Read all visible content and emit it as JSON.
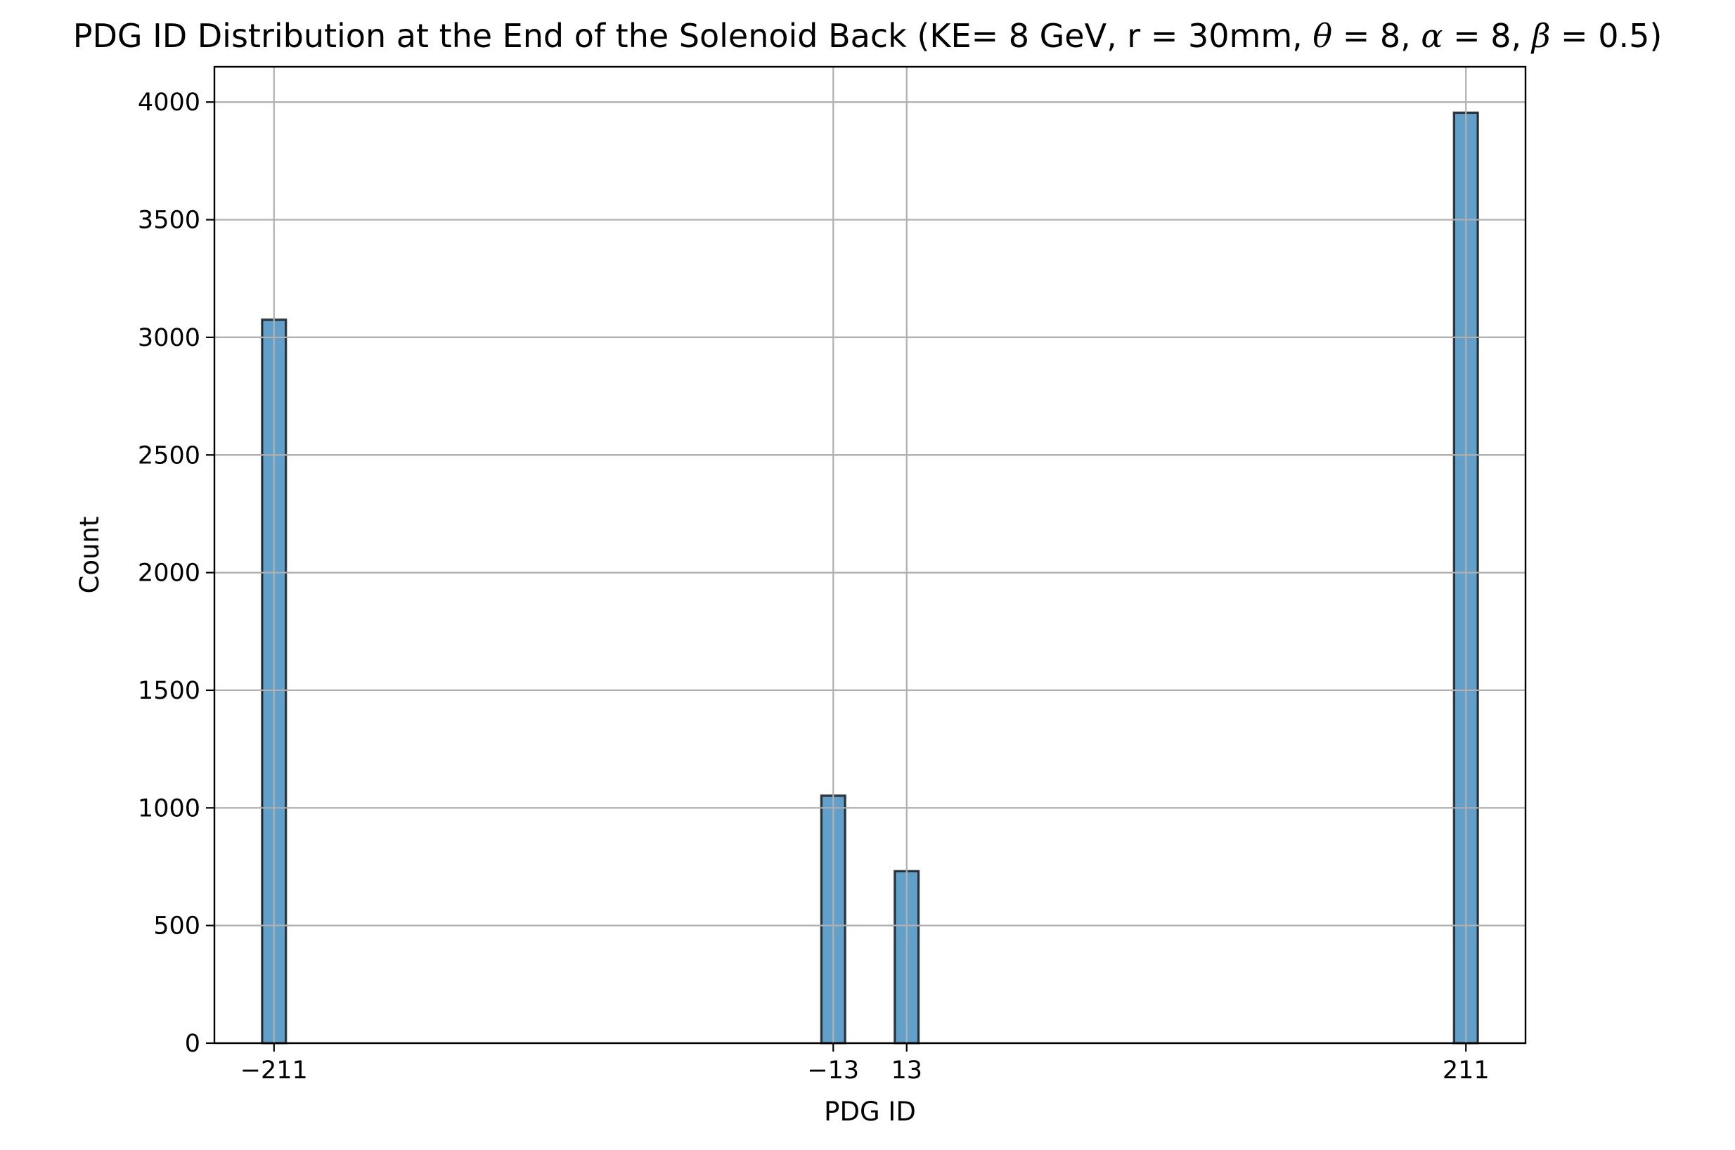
{
  "chart_data": {
    "type": "bar",
    "title": {
      "main": "PDG ID Distribution at the End of the Solenoid Back (KE= 8 GeV, r = 30mm, ",
      "theta_symbol": "θ",
      "theta_eq": " = 8, ",
      "alpha_symbol": "α",
      "alpha_eq": " = 8, ",
      "beta_symbol": "β",
      "beta_eq": " = 0.5)"
    },
    "xlabel": "PDG ID",
    "ylabel": "Count",
    "categories": [
      -211,
      -13,
      13,
      211
    ],
    "x_tick_labels": [
      "−211",
      "−13",
      "13",
      "211"
    ],
    "values": [
      3075,
      1052,
      731,
      3955
    ],
    "bin_width": 8.44,
    "xlim": [
      -232.1,
      232.1
    ],
    "ylim": [
      0,
      4150
    ],
    "y_ticks": [
      0,
      500,
      1000,
      1500,
      2000,
      2500,
      3000,
      3500,
      4000
    ],
    "grid": true,
    "colors": {
      "bar_fill": "#1f77b4",
      "bar_edge": "#000000",
      "grid": "#b0b0b0"
    }
  }
}
